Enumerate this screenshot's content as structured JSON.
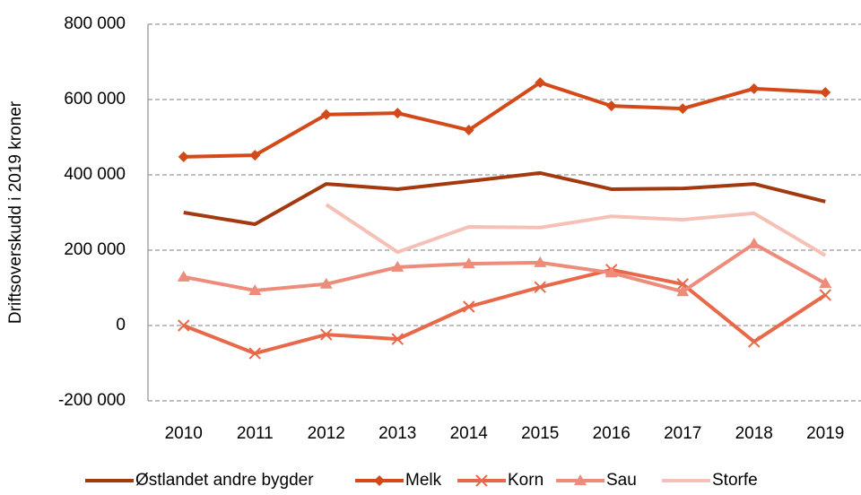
{
  "chart_data": {
    "type": "line",
    "y_label": "Driftsoverskudd i 2019 kroner",
    "categories": [
      "2010",
      "2011",
      "2012",
      "2013",
      "2014",
      "2015",
      "2016",
      "2017",
      "2018",
      "2019"
    ],
    "ylim": [
      -200000,
      800000
    ],
    "yticks": [
      {
        "value": -200000,
        "label": "-200 000"
      },
      0,
      {
        "value": 200000,
        "label": "200 000"
      },
      {
        "value": 400000,
        "label": "400 000"
      },
      {
        "value": 600000,
        "label": "600 000"
      },
      {
        "value": 800000,
        "label": "800 000"
      }
    ],
    "grid": true,
    "legend": "bottom",
    "series": [
      {
        "name": "Østlandet andre bygder",
        "color": "#a33a0f",
        "marker": "none",
        "values": [
          300000,
          269000,
          376000,
          362000,
          383000,
          405000,
          362000,
          364000,
          376000,
          329000
        ]
      },
      {
        "name": "Melk",
        "color": "#d4491a",
        "marker": "diamond",
        "values": [
          448000,
          452000,
          560000,
          564000,
          519000,
          645000,
          583000,
          576000,
          629000,
          619000
        ]
      },
      {
        "name": "Korn",
        "color": "#e8694a",
        "marker": "x",
        "values": [
          0,
          -74000,
          -24000,
          -36000,
          50000,
          102000,
          148000,
          110000,
          -43000,
          81000
        ]
      },
      {
        "name": "Sau",
        "color": "#ee8c7c",
        "marker": "triangle",
        "values": [
          129000,
          93000,
          110000,
          155000,
          164000,
          167000,
          140000,
          90000,
          217000,
          112000
        ]
      },
      {
        "name": "Storfe",
        "color": "#f5c0b5",
        "marker": "none",
        "values": [
          null,
          null,
          321000,
          195000,
          262000,
          260000,
          290000,
          281000,
          298000,
          186000
        ]
      }
    ]
  }
}
